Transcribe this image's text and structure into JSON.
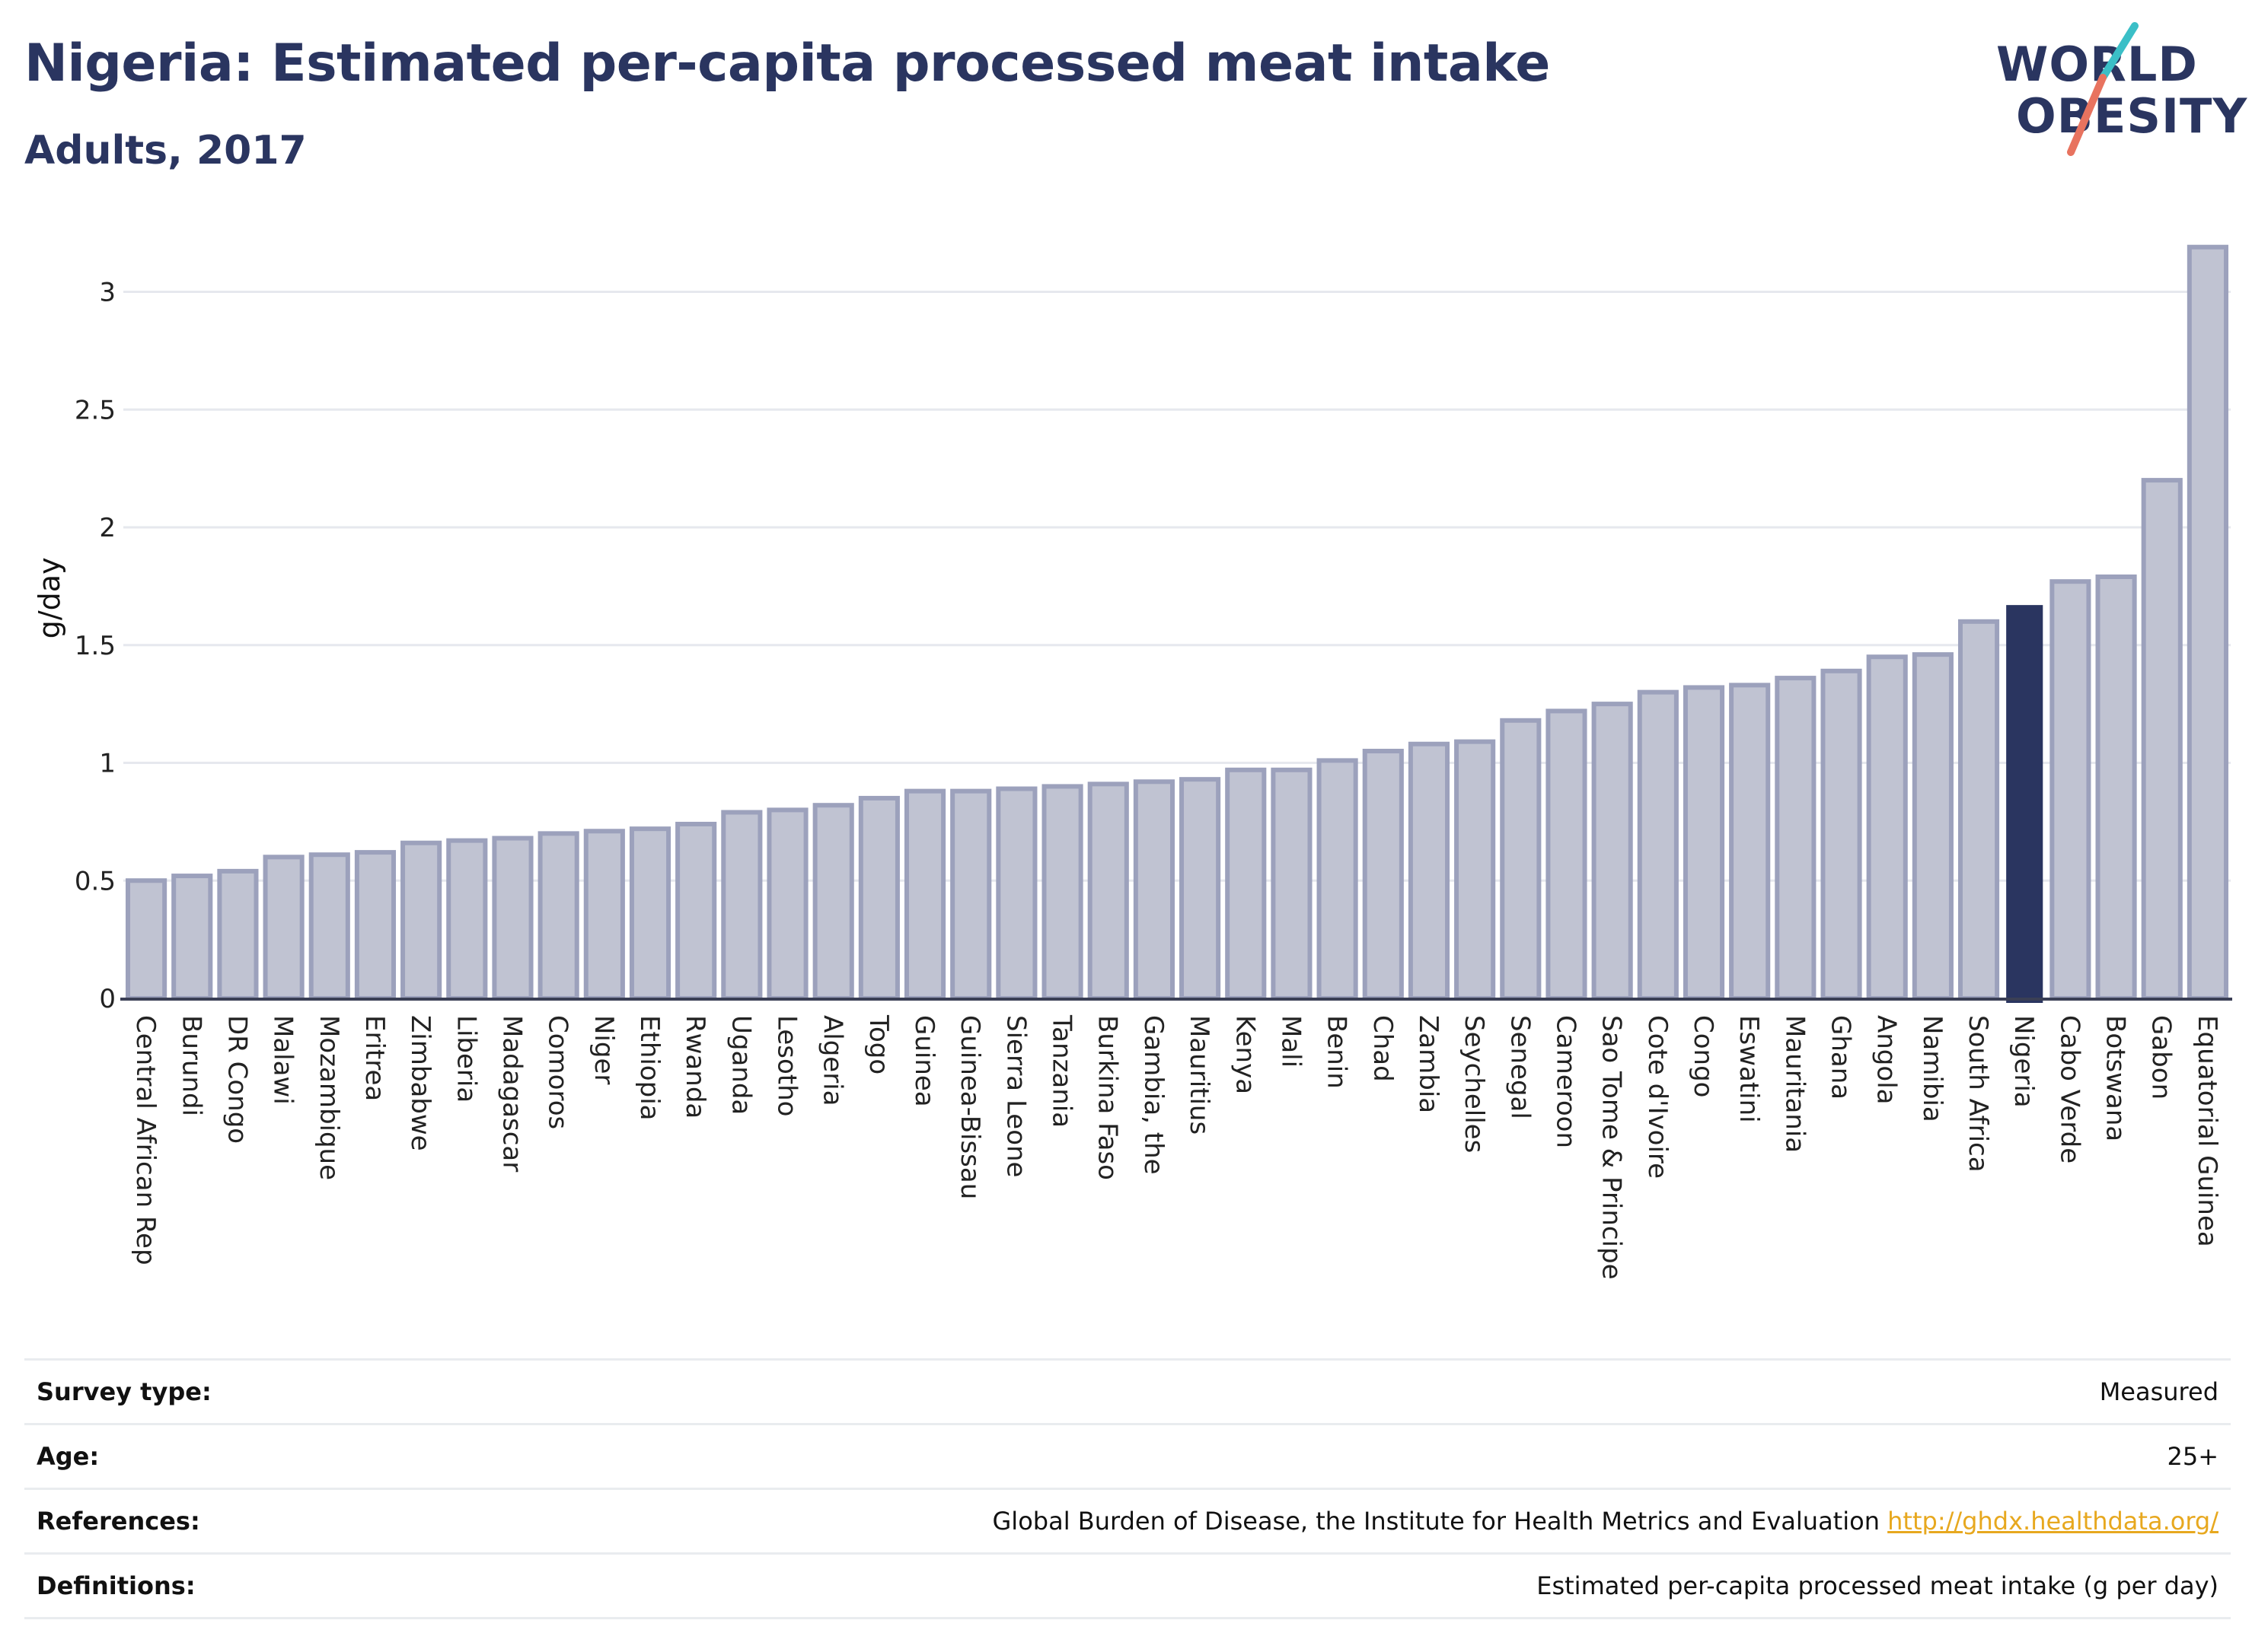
{
  "header": {
    "title": "Nigeria: Estimated per-capita processed meat intake",
    "subtitle": "Adults, 2017",
    "logo_line1": "WORLD",
    "logo_line2": "OBESITY"
  },
  "colors": {
    "bar": "#c0c3d2",
    "bar_border": "#9ca1bc",
    "highlight": "#2a3560",
    "logo_teal": "#3bbfc7",
    "logo_coral": "#e8735f",
    "link": "#e7a81f"
  },
  "chart_data": {
    "type": "bar",
    "title": "Nigeria: Estimated per-capita processed meat intake",
    "subtitle": "Adults, 2017",
    "ylabel": "g/day",
    "xlabel": "",
    "ylim": [
      0,
      3.2
    ],
    "yticks": [
      0,
      0.5,
      1,
      1.5,
      2,
      2.5,
      3
    ],
    "ytick_labels": [
      "0",
      "0.5",
      "1",
      "1.5",
      "2",
      "2.5",
      "3"
    ],
    "grid": true,
    "highlight": "Nigeria",
    "categories": [
      "Central African Rep",
      "Burundi",
      "DR Congo",
      "Malawi",
      "Mozambique",
      "Eritrea",
      "Zimbabwe",
      "Liberia",
      "Madagascar",
      "Comoros",
      "Niger",
      "Ethiopia",
      "Rwanda",
      "Uganda",
      "Lesotho",
      "Algeria",
      "Togo",
      "Guinea",
      "Guinea-Bissau",
      "Sierra Leone",
      "Tanzania",
      "Burkina Faso",
      "Gambia, the",
      "Mauritius",
      "Kenya",
      "Mali",
      "Benin",
      "Chad",
      "Zambia",
      "Seychelles",
      "Senegal",
      "Cameroon",
      "Sao Tome & Principe",
      "Cote d'Ivoire",
      "Congo",
      "Eswatini",
      "Mauritania",
      "Ghana",
      "Angola",
      "Namibia",
      "South Africa",
      "Nigeria",
      "Cabo Verde",
      "Botswana",
      "Gabon",
      "Equatorial Guinea"
    ],
    "values": [
      0.5,
      0.52,
      0.54,
      0.6,
      0.61,
      0.62,
      0.66,
      0.67,
      0.68,
      0.7,
      0.71,
      0.72,
      0.74,
      0.79,
      0.8,
      0.82,
      0.85,
      0.88,
      0.88,
      0.89,
      0.9,
      0.91,
      0.92,
      0.93,
      0.97,
      0.97,
      1.01,
      1.05,
      1.08,
      1.09,
      1.18,
      1.22,
      1.25,
      1.3,
      1.32,
      1.33,
      1.36,
      1.39,
      1.45,
      1.46,
      1.6,
      1.67,
      1.77,
      1.79,
      2.2,
      3.19
    ]
  },
  "info": {
    "survey_label": "Survey type:",
    "survey_value": "Measured",
    "age_label": "Age:",
    "age_value": "25+",
    "references_label": "References:",
    "references_text": "Global Burden of Disease, the Institute for Health Metrics and Evaluation",
    "references_link": "http://ghdx.healthdata.org/",
    "definitions_label": "Definitions:",
    "definitions_value": "Estimated per-capita processed meat intake (g per day)"
  }
}
